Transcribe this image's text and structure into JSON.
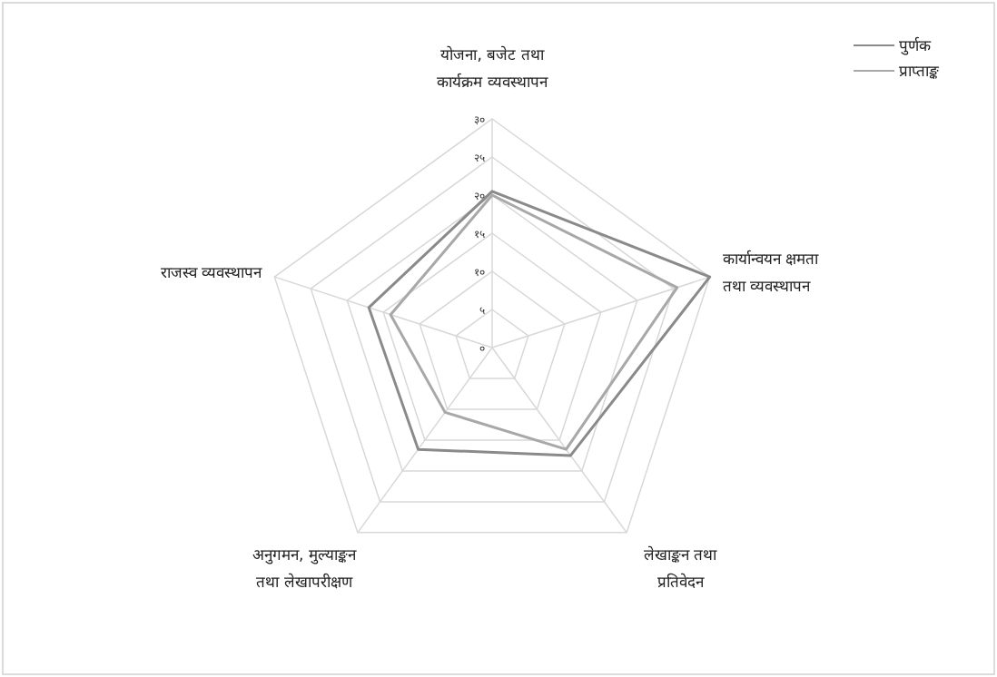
{
  "chart_data": {
    "type": "radar",
    "categories": [
      "योजना, बजेट तथा\nकार्यक्रम व्यवस्थापन",
      "कार्यान्वयन क्षमता\nतथा व्यवस्थापन",
      "लेखाङ्कन तथा\nप्रतिवेदन",
      "अनुगमन, मुल्याङ्कन\nतथा लेखापरीक्षण",
      "राजस्व व्यवस्थापन"
    ],
    "series": [
      {
        "name": "पुर्णक",
        "color": "#8a8a8a",
        "values": [
          20.5,
          30,
          17.5,
          16.5,
          17
        ]
      },
      {
        "name": "प्राप्ताङ्क",
        "color": "#a8a8a8",
        "values": [
          20,
          25.5,
          16.5,
          10.5,
          14
        ]
      }
    ],
    "ylim": [
      0,
      30
    ],
    "yticks": [
      {
        "value": 0,
        "label": "०"
      },
      {
        "value": 5,
        "label": "५"
      },
      {
        "value": 10,
        "label": "१०"
      },
      {
        "value": 15,
        "label": "१५"
      },
      {
        "value": 20,
        "label": "२०"
      },
      {
        "value": 25,
        "label": "२५"
      },
      {
        "value": 30,
        "label": "३०"
      }
    ],
    "grid": true,
    "legend": "top right"
  }
}
